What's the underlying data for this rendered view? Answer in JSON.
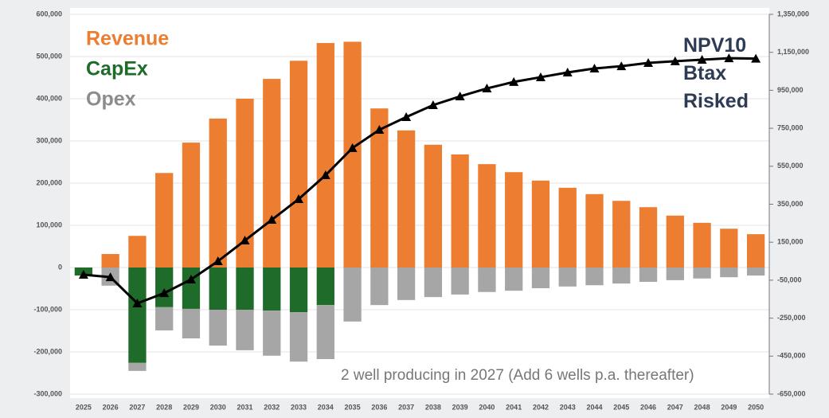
{
  "chart_data": {
    "type": "bar",
    "categories": [
      "2025",
      "2026",
      "2027",
      "2028",
      "2029",
      "2030",
      "2031",
      "2032",
      "2033",
      "2034",
      "2035",
      "2036",
      "2037",
      "2038",
      "2039",
      "2040",
      "2041",
      "2042",
      "2043",
      "2044",
      "2045",
      "2046",
      "2047",
      "2048",
      "2049",
      "2050"
    ],
    "series": [
      {
        "name": "Revenue",
        "color": "#ed7d31",
        "values": [
          0,
          32000,
          75000,
          224000,
          296000,
          353000,
          400000,
          447000,
          490000,
          532000,
          535000,
          377000,
          325000,
          291000,
          268000,
          245000,
          226000,
          206000,
          189000,
          174000,
          158000,
          143000,
          123000,
          106000,
          92000,
          79000
        ]
      },
      {
        "name": "CapEx",
        "color": "#1e6b2a",
        "values": [
          -19000,
          0,
          -226000,
          -94000,
          -98000,
          -100000,
          -100000,
          -102000,
          -106000,
          -89000,
          0,
          0,
          0,
          0,
          0,
          0,
          0,
          0,
          0,
          0,
          0,
          0,
          0,
          0,
          0,
          0
        ]
      },
      {
        "name": "Opex",
        "color": "#a6a6a6",
        "values": [
          0,
          -43000,
          -19000,
          -55000,
          -70000,
          -85000,
          -96000,
          -107000,
          -117000,
          -128000,
          -128000,
          -89000,
          -77000,
          -70000,
          -64000,
          -58000,
          -55000,
          -49000,
          -45000,
          -42000,
          -38000,
          -34000,
          -30000,
          -26000,
          -23000,
          -19000
        ]
      },
      {
        "name": "NPV10 Btax Risked",
        "color": "#000000",
        "type": "line",
        "axis": "y2",
        "values": [
          -21000,
          -34000,
          -172000,
          -118000,
          -46000,
          50000,
          159000,
          268000,
          377000,
          503000,
          646000,
          742000,
          809000,
          872000,
          918000,
          960000,
          994000,
          1019000,
          1044000,
          1065000,
          1077000,
          1094000,
          1103000,
          1111000,
          1119000,
          1117000
        ]
      }
    ],
    "annotation": "2 well producing in 2027 (Add 6 wells p.a. thereafter)",
    "ylim": [
      -300000,
      600000
    ],
    "yticks": [
      {
        "value": 600000,
        "label": "600,000"
      },
      {
        "value": 500000,
        "label": "500,000"
      },
      {
        "value": 400000,
        "label": "400,000"
      },
      {
        "value": 300000,
        "label": "300,000"
      },
      {
        "value": 200000,
        "label": "200,000"
      },
      {
        "value": 100000,
        "label": "100,000"
      },
      0,
      {
        "value": -100000,
        "label": "-100,000"
      },
      {
        "value": -200000,
        "label": "-200,000"
      },
      {
        "value": -300000,
        "label": "-300,000"
      }
    ],
    "y2lim": [
      -650000,
      1350000
    ],
    "y2ticks": [
      {
        "value": 1350000,
        "label": "1,350,000"
      },
      {
        "value": 1150000,
        "label": "1,150,000"
      },
      {
        "value": 950000,
        "label": "950,000"
      },
      {
        "value": 750000,
        "label": "750,000"
      },
      {
        "value": 550000,
        "label": "550,000"
      },
      {
        "value": 350000,
        "label": "350,000"
      },
      {
        "value": 150000,
        "label": "150,000"
      },
      {
        "value": -50000,
        "label": "-50,000"
      },
      {
        "value": -250000,
        "label": "-250,000"
      },
      {
        "value": -450000,
        "label": "-450,000"
      },
      {
        "value": -650000,
        "label": "-650,000"
      }
    ],
    "grid": true
  }
}
